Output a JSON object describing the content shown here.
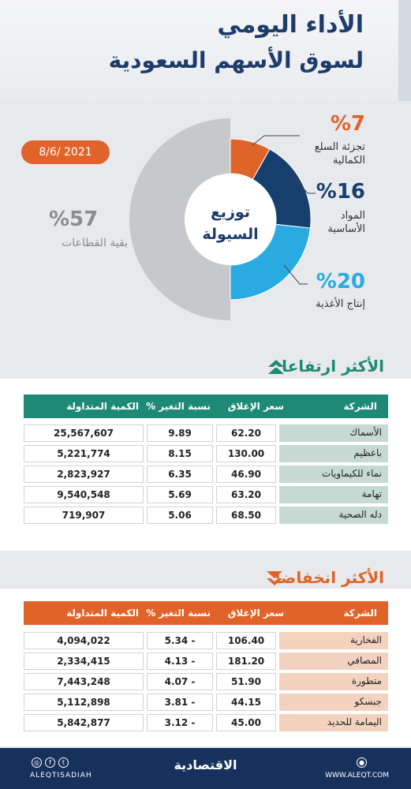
{
  "header": {
    "title_line1": "الأداء اليومي",
    "title_line2": "لسوق الأسهم السعودية"
  },
  "date": "8/6/ 2021",
  "donut": {
    "center_line1": "توزيع",
    "center_line2": "السيولة",
    "slices": [
      {
        "pct_text": "%7",
        "label": "تجزئة السلع الكمالية",
        "value": 7,
        "color": "#e0642a"
      },
      {
        "pct_text": "%16",
        "label": "المواد الأساسية",
        "value": 16,
        "color": "#173f6e"
      },
      {
        "pct_text": "%20",
        "label": "إنتاج الأغذية",
        "value": 20,
        "color": "#29abe2"
      },
      {
        "pct_text": "%57",
        "label": "بقية القطاعات",
        "value": 57,
        "color": "#c6c8cb"
      }
    ]
  },
  "gainers": {
    "title": "الأكثر ارتفاعا",
    "header_color": "#1e8a76",
    "name_bg": "#c7d9d3",
    "headers": {
      "company": "الشركة",
      "close": "سعر الإغلاق",
      "change": "نسبة التغير %",
      "volume": "الكمية المتداولة"
    },
    "rows": [
      {
        "company": "الأسماك",
        "close": "62.20",
        "change": "9.89",
        "volume": "25,567,607"
      },
      {
        "company": "باعظيم",
        "close": "130.00",
        "change": "8.15",
        "volume": "5,221,774"
      },
      {
        "company": "نماء للكيماويات",
        "close": "46.90",
        "change": "6.35",
        "volume": "2,823,927"
      },
      {
        "company": "تهامة",
        "close": "63.20",
        "change": "5.69",
        "volume": "9,540,548"
      },
      {
        "company": "دله الصحية",
        "close": "68.50",
        "change": "5.06",
        "volume": "719,907"
      }
    ]
  },
  "losers": {
    "title": "الأكثر انخفاضا",
    "header_color": "#e0642a",
    "name_bg": "#f3d3c0",
    "headers": {
      "company": "الشركة",
      "close": "سعر الإغلاق",
      "change": "نسبة التغير %",
      "volume": "الكمية المتداولة"
    },
    "rows": [
      {
        "company": "الفخارية",
        "close": "106.40",
        "change": "5.34 -",
        "volume": "4,094,022"
      },
      {
        "company": "المصافي",
        "close": "181.20",
        "change": "4.13 -",
        "volume": "2,334,415"
      },
      {
        "company": "متطورة",
        "close": "51.90",
        "change": "4.07 -",
        "volume": "7,443,248"
      },
      {
        "company": "جبسكو",
        "close": "44.15",
        "change": "3.81 -",
        "volume": "5,112,898"
      },
      {
        "company": "اليمامة للحديد",
        "close": "45.00",
        "change": "3.12 -",
        "volume": "5,842,877"
      }
    ]
  },
  "footer": {
    "handle": "ALEQTISADIAH",
    "logo": "الاقتصادية",
    "website": "WWW.ALEQT.COM"
  }
}
